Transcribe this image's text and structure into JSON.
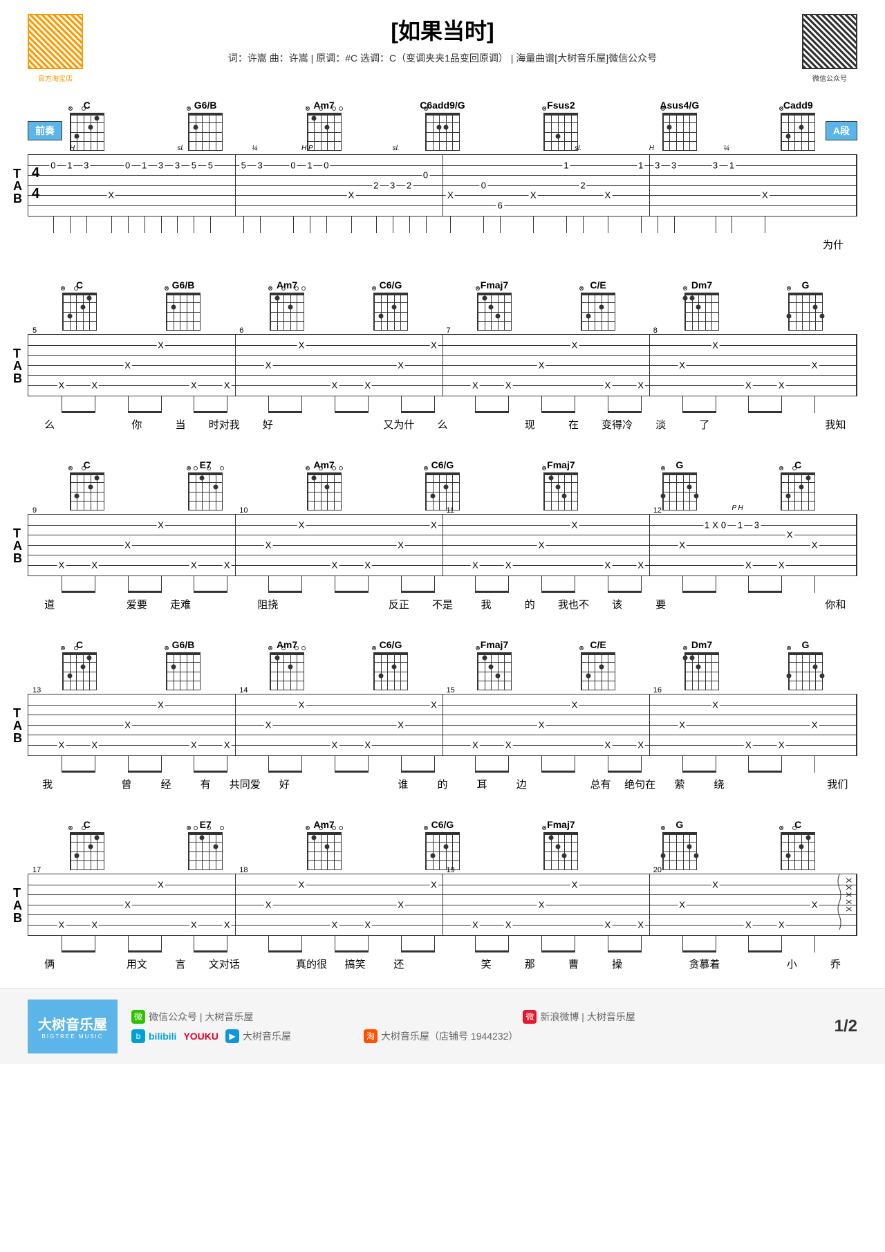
{
  "title": "[如果当时]",
  "subtitle": "词：许嵩 曲：许嵩 | 原调：#C  选调：C（变调夹夹1品变回原调）  | 海量曲谱[大树音乐屋]微信公众号",
  "qr_left_text": "官方淘宝店",
  "qr_right_text": "微信公众号",
  "section_intro": "前奏",
  "section_a": "A段",
  "page_number": "1/2",
  "tab_label_t": "T",
  "tab_label_a": "A",
  "tab_label_b": "B",
  "time_sig_top": "4",
  "time_sig_bot": "4",
  "colors": {
    "section_bg": "#5bb5e8",
    "qr_orange": "#ff9900",
    "text": "#333333",
    "footer_bg": "#f5f5f5"
  },
  "rows": [
    {
      "chords": [
        "C",
        "G6/B",
        "Am7",
        "C6add9/G",
        "Fsus2",
        "Asus4/G",
        "Cadd9"
      ],
      "lyrics_end": "为什",
      "measures": 4,
      "tab_data": [
        {
          "pos": 3,
          "line": 2,
          "val": "0"
        },
        {
          "pos": 5,
          "line": 2,
          "val": "1"
        },
        {
          "pos": 7,
          "line": 2,
          "val": "3"
        },
        {
          "pos": 10,
          "line": 5,
          "val": "X"
        },
        {
          "pos": 12,
          "line": 2,
          "val": "0"
        },
        {
          "pos": 14,
          "line": 2,
          "val": "1"
        },
        {
          "pos": 16,
          "line": 2,
          "val": "3"
        },
        {
          "pos": 18,
          "line": 2,
          "val": "3"
        },
        {
          "pos": 20,
          "line": 2,
          "val": "5"
        },
        {
          "pos": 22,
          "line": 2,
          "val": "5"
        },
        {
          "pos": 26,
          "line": 2,
          "val": "5"
        },
        {
          "pos": 28,
          "line": 2,
          "val": "3"
        },
        {
          "pos": 32,
          "line": 2,
          "val": "0"
        },
        {
          "pos": 34,
          "line": 2,
          "val": "1"
        },
        {
          "pos": 36,
          "line": 2,
          "val": "0"
        },
        {
          "pos": 39,
          "line": 5,
          "val": "X"
        },
        {
          "pos": 42,
          "line": 4,
          "val": "2"
        },
        {
          "pos": 44,
          "line": 4,
          "val": "3"
        },
        {
          "pos": 46,
          "line": 4,
          "val": "2"
        },
        {
          "pos": 48,
          "line": 3,
          "val": "0"
        },
        {
          "pos": 51,
          "line": 5,
          "val": "X"
        },
        {
          "pos": 55,
          "line": 4,
          "val": "0"
        },
        {
          "pos": 57,
          "line": 6,
          "val": "6"
        },
        {
          "pos": 61,
          "line": 5,
          "val": "X"
        },
        {
          "pos": 65,
          "line": 2,
          "val": "1"
        },
        {
          "pos": 67,
          "line": 4,
          "val": "2"
        },
        {
          "pos": 70,
          "line": 5,
          "val": "X"
        },
        {
          "pos": 74,
          "line": 2,
          "val": "1"
        },
        {
          "pos": 76,
          "line": 2,
          "val": "3"
        },
        {
          "pos": 78,
          "line": 2,
          "val": "3"
        },
        {
          "pos": 83,
          "line": 2,
          "val": "3"
        },
        {
          "pos": 85,
          "line": 2,
          "val": "1"
        },
        {
          "pos": 89,
          "line": 5,
          "val": "X"
        }
      ],
      "annotations": [
        {
          "pos": 5,
          "text": "H"
        },
        {
          "pos": 18,
          "text": "sl."
        },
        {
          "pos": 27,
          "text": "¼"
        },
        {
          "pos": 33,
          "text": "H P"
        },
        {
          "pos": 44,
          "text": "sl."
        },
        {
          "pos": 66,
          "text": "sl."
        },
        {
          "pos": 75,
          "text": "H"
        },
        {
          "pos": 84,
          "text": "¼"
        }
      ]
    },
    {
      "chords": [
        "C",
        "G6/B",
        "Am7",
        "C6/G",
        "Fmaj7",
        "C/E",
        "Dm7",
        "G"
      ],
      "lyrics": [
        "么",
        "",
        "你",
        "当",
        "时对我",
        "好",
        "",
        "",
        "又为什",
        "么",
        "",
        "现",
        "在",
        "变得冷",
        "淡",
        "了",
        "",
        "",
        "我知"
      ],
      "measures": 4,
      "bar_nums": [
        "5",
        "6",
        "7",
        "8"
      ],
      "tab_pattern": "standard_x"
    },
    {
      "chords": [
        "C",
        "E7",
        "Am7",
        "C6/G",
        "Fmaj7",
        "G",
        "C"
      ],
      "lyrics": [
        "道",
        "",
        "爱要",
        "走难",
        "",
        "阻挠",
        "",
        "",
        "反正",
        "不是",
        "我",
        "的",
        "我也不",
        "该",
        "要",
        "",
        "",
        "",
        "你和"
      ],
      "measures": 4,
      "bar_nums": [
        "9",
        "10",
        "11",
        "12"
      ],
      "tab_pattern": "standard_x",
      "annotations": [
        {
          "pos": 85,
          "text": "P   H"
        }
      ],
      "extra_tab": [
        {
          "pos": 82,
          "line": 2,
          "val": "1"
        },
        {
          "pos": 84,
          "line": 2,
          "val": "0"
        },
        {
          "pos": 86,
          "line": 2,
          "val": "1"
        },
        {
          "pos": 88,
          "line": 2,
          "val": "3"
        },
        {
          "pos": 92,
          "line": 3,
          "val": "X"
        }
      ]
    },
    {
      "chords": [
        "C",
        "G6/B",
        "Am7",
        "C6/G",
        "Fmaj7",
        "C/E",
        "Dm7",
        "G"
      ],
      "lyrics": [
        "我",
        "",
        "曾",
        "经",
        "有",
        "共同爱",
        "好",
        "",
        "",
        "谁",
        "的",
        "耳",
        "边",
        "",
        "总有",
        "绝句在",
        "萦",
        "绕",
        "",
        "",
        "我们"
      ],
      "measures": 4,
      "bar_nums": [
        "13",
        "14",
        "15",
        "16"
      ],
      "tab_pattern": "standard_x"
    },
    {
      "chords": [
        "C",
        "E7",
        "Am7",
        "C6/G",
        "Fmaj7",
        "G",
        "C"
      ],
      "lyrics": [
        "俩",
        "",
        "用文",
        "言",
        "文对话",
        "",
        "真的很",
        "搞笑",
        "还",
        "",
        "笑",
        "那",
        "曹",
        "操",
        "",
        "贪慕着",
        "",
        "小",
        "乔"
      ],
      "measures": 4,
      "bar_nums": [
        "17",
        "18",
        "19",
        "20"
      ],
      "tab_pattern": "standard_x",
      "has_strum_end": true
    }
  ],
  "footer": {
    "logo_cn": "大树音乐屋",
    "logo_en": "BIGTREE MUSIC",
    "wechat": "微信公众号 | 大树音乐屋",
    "weibo": "新浪微博 | 大树音乐屋",
    "video": "大树音乐屋",
    "taobao": "大树音乐屋（店铺号 1944232）",
    "bilibili": "bilibili",
    "youku": "YOUKU"
  }
}
